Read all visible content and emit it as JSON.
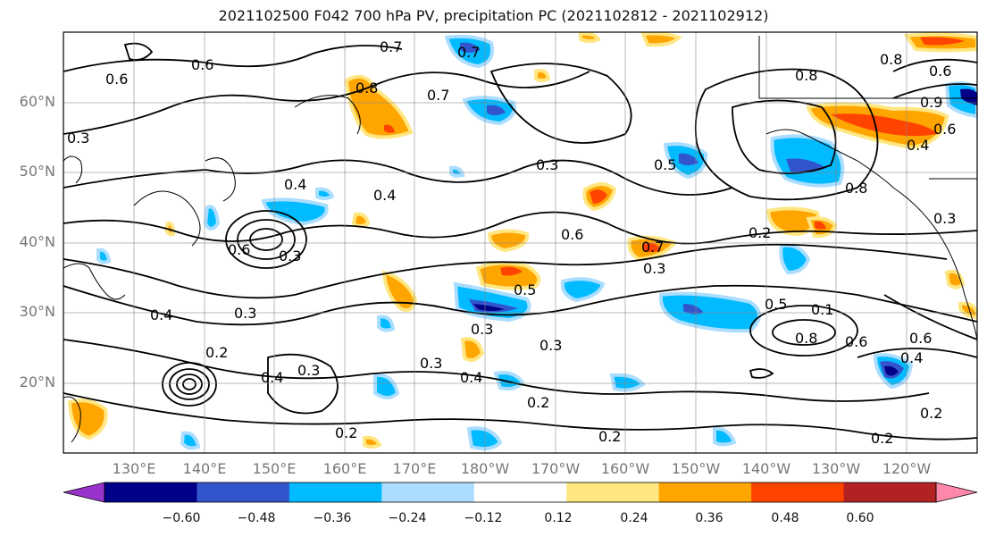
{
  "title": "2021102500 F042 700 hPa PV, precipitation PC (2021102812 - 2021102912)",
  "lat_labels": [
    "60°N",
    "50°N",
    "40°N",
    "30°N",
    "20°N"
  ],
  "lon_labels": [
    "130°E",
    "140°E",
    "150°E",
    "160°E",
    "170°E",
    "180°W",
    "170°W",
    "160°W",
    "150°W",
    "140°W",
    "130°W",
    "120°W"
  ],
  "colorbar": {
    "ticks": [
      "−0.60",
      "−0.48",
      "−0.36",
      "−0.24",
      "−0.12",
      "0.12",
      "0.24",
      "0.36",
      "0.48",
      "0.60"
    ],
    "colors": [
      "#9933cc",
      "#000088",
      "#3355cc",
      "#00bbff",
      "#aaddff",
      "#ffffff",
      "#ffe680",
      "#ffa500",
      "#ff4400",
      "#b22222",
      "#ff88aa"
    ]
  },
  "contour_labels": [
    "0.6",
    "0.7",
    "0.7",
    "0.8",
    "0.7",
    "0.6",
    "0.4",
    "0.4",
    "0.6",
    "0.3",
    "0.4",
    "0.3",
    "0.2",
    "0.4",
    "0.3",
    "0.5",
    "0.3",
    "0.3",
    "0.4",
    "0.2",
    "0.2",
    "0.3",
    "0.6",
    "0.7",
    "0.3",
    "0.5",
    "0.8",
    "0.4",
    "0.8",
    "0.5",
    "0.6",
    "0.6",
    "0.8",
    "0.9",
    "0.6",
    "0.4",
    "0.2",
    "0.2",
    "0.1",
    "0.2",
    "0.3",
    "0.2",
    "0.8",
    "0.3",
    "0.3",
    "0.6"
  ]
}
